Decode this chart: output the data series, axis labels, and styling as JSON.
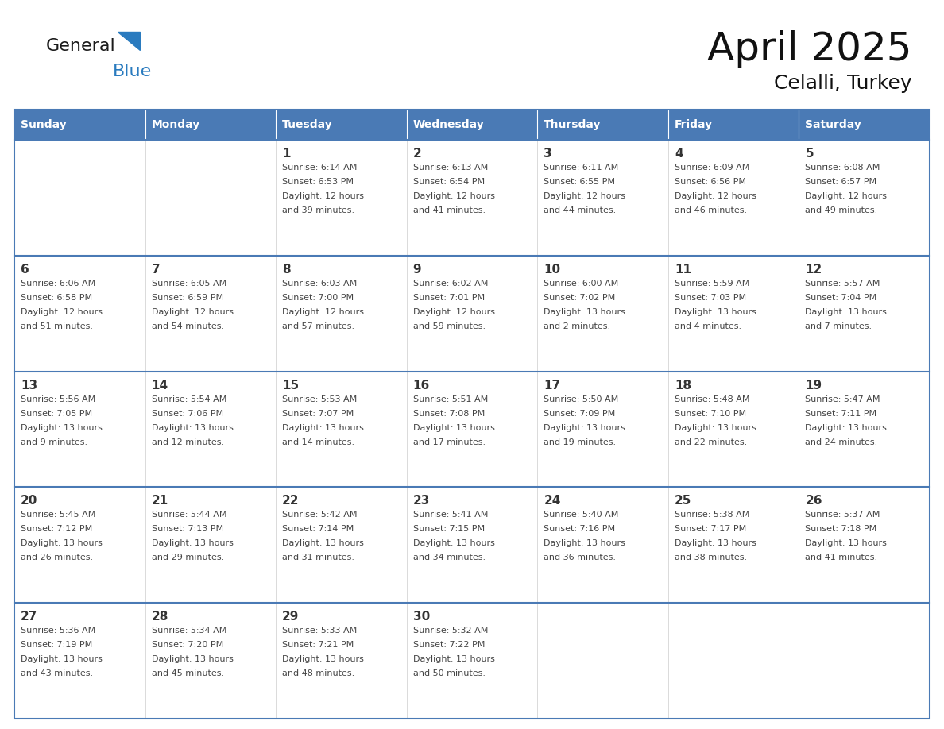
{
  "title": "April 2025",
  "subtitle": "Celalli, Turkey",
  "days_of_week": [
    "Sunday",
    "Monday",
    "Tuesday",
    "Wednesday",
    "Thursday",
    "Friday",
    "Saturday"
  ],
  "header_bg": "#4a7ab5",
  "header_text": "#ffffff",
  "cell_bg": "#ffffff",
  "border_color": "#4a7ab5",
  "border_color_inner": "#5a8ac0",
  "day_number_color": "#333333",
  "info_text_color": "#444444",
  "title_color": "#111111",
  "logo_general_color": "#1a1a1a",
  "logo_blue_color": "#2a7bbf",
  "weeks": [
    [
      {
        "day": null,
        "info": ""
      },
      {
        "day": null,
        "info": ""
      },
      {
        "day": 1,
        "info": "Sunrise: 6:14 AM\nSunset: 6:53 PM\nDaylight: 12 hours\nand 39 minutes."
      },
      {
        "day": 2,
        "info": "Sunrise: 6:13 AM\nSunset: 6:54 PM\nDaylight: 12 hours\nand 41 minutes."
      },
      {
        "day": 3,
        "info": "Sunrise: 6:11 AM\nSunset: 6:55 PM\nDaylight: 12 hours\nand 44 minutes."
      },
      {
        "day": 4,
        "info": "Sunrise: 6:09 AM\nSunset: 6:56 PM\nDaylight: 12 hours\nand 46 minutes."
      },
      {
        "day": 5,
        "info": "Sunrise: 6:08 AM\nSunset: 6:57 PM\nDaylight: 12 hours\nand 49 minutes."
      }
    ],
    [
      {
        "day": 6,
        "info": "Sunrise: 6:06 AM\nSunset: 6:58 PM\nDaylight: 12 hours\nand 51 minutes."
      },
      {
        "day": 7,
        "info": "Sunrise: 6:05 AM\nSunset: 6:59 PM\nDaylight: 12 hours\nand 54 minutes."
      },
      {
        "day": 8,
        "info": "Sunrise: 6:03 AM\nSunset: 7:00 PM\nDaylight: 12 hours\nand 57 minutes."
      },
      {
        "day": 9,
        "info": "Sunrise: 6:02 AM\nSunset: 7:01 PM\nDaylight: 12 hours\nand 59 minutes."
      },
      {
        "day": 10,
        "info": "Sunrise: 6:00 AM\nSunset: 7:02 PM\nDaylight: 13 hours\nand 2 minutes."
      },
      {
        "day": 11,
        "info": "Sunrise: 5:59 AM\nSunset: 7:03 PM\nDaylight: 13 hours\nand 4 minutes."
      },
      {
        "day": 12,
        "info": "Sunrise: 5:57 AM\nSunset: 7:04 PM\nDaylight: 13 hours\nand 7 minutes."
      }
    ],
    [
      {
        "day": 13,
        "info": "Sunrise: 5:56 AM\nSunset: 7:05 PM\nDaylight: 13 hours\nand 9 minutes."
      },
      {
        "day": 14,
        "info": "Sunrise: 5:54 AM\nSunset: 7:06 PM\nDaylight: 13 hours\nand 12 minutes."
      },
      {
        "day": 15,
        "info": "Sunrise: 5:53 AM\nSunset: 7:07 PM\nDaylight: 13 hours\nand 14 minutes."
      },
      {
        "day": 16,
        "info": "Sunrise: 5:51 AM\nSunset: 7:08 PM\nDaylight: 13 hours\nand 17 minutes."
      },
      {
        "day": 17,
        "info": "Sunrise: 5:50 AM\nSunset: 7:09 PM\nDaylight: 13 hours\nand 19 minutes."
      },
      {
        "day": 18,
        "info": "Sunrise: 5:48 AM\nSunset: 7:10 PM\nDaylight: 13 hours\nand 22 minutes."
      },
      {
        "day": 19,
        "info": "Sunrise: 5:47 AM\nSunset: 7:11 PM\nDaylight: 13 hours\nand 24 minutes."
      }
    ],
    [
      {
        "day": 20,
        "info": "Sunrise: 5:45 AM\nSunset: 7:12 PM\nDaylight: 13 hours\nand 26 minutes."
      },
      {
        "day": 21,
        "info": "Sunrise: 5:44 AM\nSunset: 7:13 PM\nDaylight: 13 hours\nand 29 minutes."
      },
      {
        "day": 22,
        "info": "Sunrise: 5:42 AM\nSunset: 7:14 PM\nDaylight: 13 hours\nand 31 minutes."
      },
      {
        "day": 23,
        "info": "Sunrise: 5:41 AM\nSunset: 7:15 PM\nDaylight: 13 hours\nand 34 minutes."
      },
      {
        "day": 24,
        "info": "Sunrise: 5:40 AM\nSunset: 7:16 PM\nDaylight: 13 hours\nand 36 minutes."
      },
      {
        "day": 25,
        "info": "Sunrise: 5:38 AM\nSunset: 7:17 PM\nDaylight: 13 hours\nand 38 minutes."
      },
      {
        "day": 26,
        "info": "Sunrise: 5:37 AM\nSunset: 7:18 PM\nDaylight: 13 hours\nand 41 minutes."
      }
    ],
    [
      {
        "day": 27,
        "info": "Sunrise: 5:36 AM\nSunset: 7:19 PM\nDaylight: 13 hours\nand 43 minutes."
      },
      {
        "day": 28,
        "info": "Sunrise: 5:34 AM\nSunset: 7:20 PM\nDaylight: 13 hours\nand 45 minutes."
      },
      {
        "day": 29,
        "info": "Sunrise: 5:33 AM\nSunset: 7:21 PM\nDaylight: 13 hours\nand 48 minutes."
      },
      {
        "day": 30,
        "info": "Sunrise: 5:32 AM\nSunset: 7:22 PM\nDaylight: 13 hours\nand 50 minutes."
      },
      {
        "day": null,
        "info": ""
      },
      {
        "day": null,
        "info": ""
      },
      {
        "day": null,
        "info": ""
      }
    ]
  ]
}
